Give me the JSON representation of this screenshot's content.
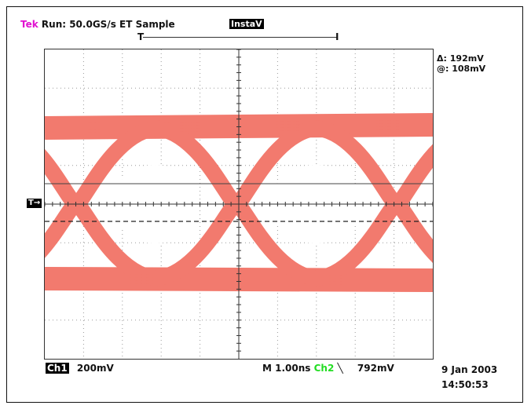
{
  "header": {
    "brand": "Tek",
    "status": "Run: 50.0GS/s ET Sample",
    "mode": "InstaV"
  },
  "trigger": {
    "position_glyph": "T",
    "end_glyph": "I",
    "level_glyph": "T→"
  },
  "cursor": {
    "delta_label": "Δ:",
    "delta_value": "192mV",
    "at_label": "@:",
    "at_value": "108mV"
  },
  "footer": {
    "ch1_label": "Ch1",
    "ch1_scale": "200mV",
    "timebase": "M 1.00ns",
    "trigger_source": "Ch2",
    "trigger_slope": "╲",
    "trigger_level": "792mV",
    "date": "9 Jan 2003",
    "time": "14:50:53"
  },
  "colors": {
    "waveform": "#f27a6e",
    "grid": "#9a9a9a",
    "cursor_solid": "#444444",
    "brand": "#e010d0",
    "ch2": "#22dd22"
  },
  "display": {
    "horizontal_divisions": 10,
    "vertical_divisions": 8,
    "waveform": "eye-diagram"
  }
}
